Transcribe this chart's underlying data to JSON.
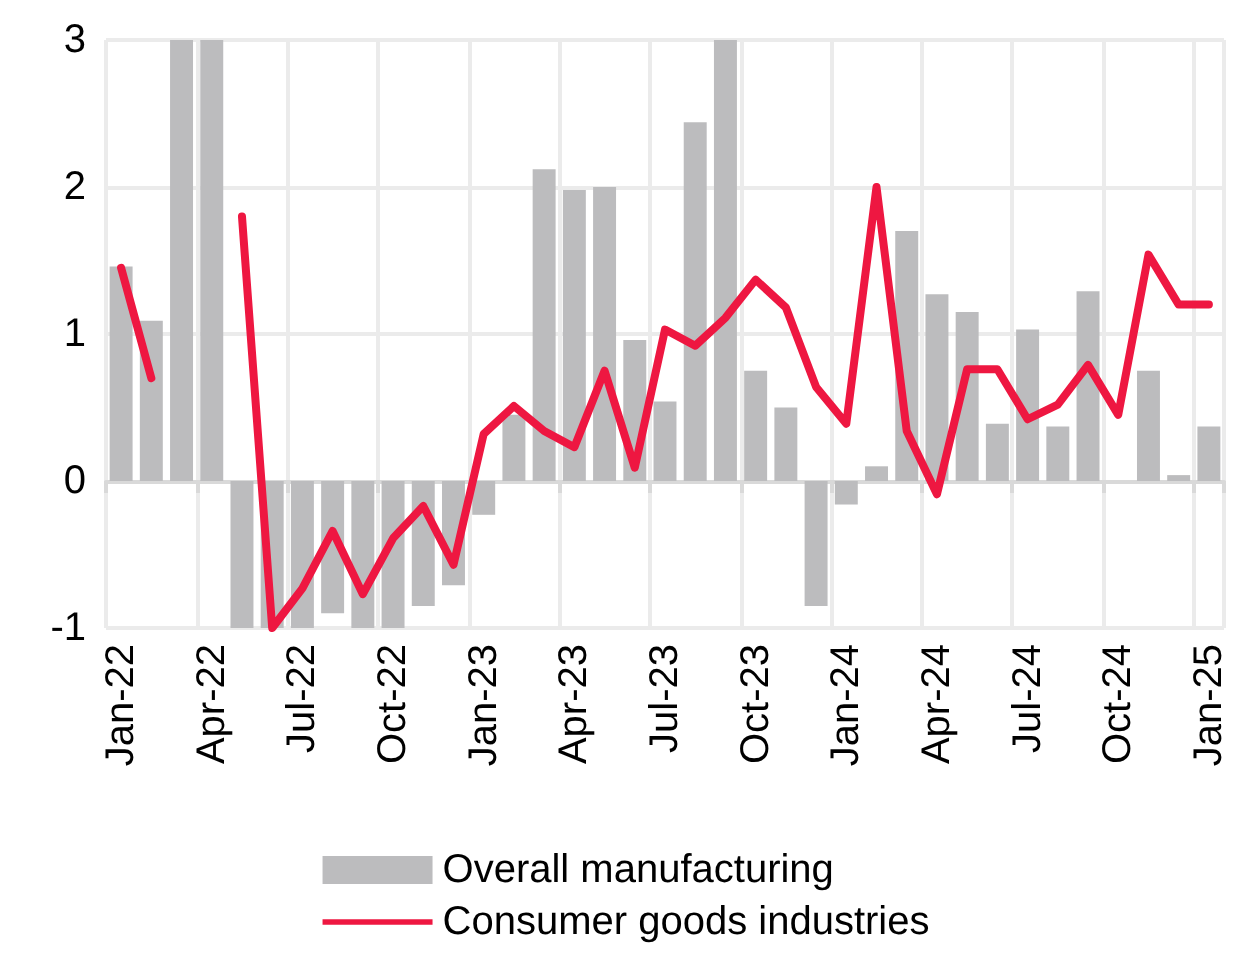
{
  "chart_data": {
    "type": "bar",
    "categories": [
      "Jan-22",
      null,
      null,
      "Apr-22",
      null,
      null,
      "Jul-22",
      null,
      null,
      "Oct-22",
      null,
      null,
      "Jan-23",
      null,
      null,
      "Apr-23",
      null,
      null,
      "Jul-23",
      null,
      null,
      "Oct-23",
      null,
      null,
      "Jan-24",
      null,
      null,
      "Apr-24",
      null,
      null,
      "Jul-24",
      null,
      null,
      "Oct-24",
      null,
      null,
      "Jan-25"
    ],
    "series": [
      {
        "name": "Overall manufacturing",
        "color": "#bcbcbe",
        "values": [
          1.46,
          1.09,
          3,
          3,
          -1,
          -1,
          -1,
          -0.9,
          -1,
          -1,
          -0.85,
          -0.71,
          -0.23,
          0.45,
          2.12,
          1.98,
          2.0,
          0.96,
          0.54,
          2.44,
          3,
          0.75,
          0.5,
          -0.85,
          -0.16,
          0.1,
          1.7,
          1.27,
          1.15,
          0.39,
          1.03,
          0.37,
          1.29,
          0,
          0.75,
          0.04,
          0.37
        ]
      },
      {
        "name": "Consumer goods industries",
        "type": "line",
        "color": "#ee1741",
        "values": [
          1.45,
          0.7,
          null,
          null,
          1.8,
          -1,
          -0.73,
          -0.34,
          -0.77,
          -0.39,
          -0.17,
          -0.57,
          0.32,
          0.51,
          0.34,
          0.23,
          0.75,
          0.09,
          1.03,
          0.92,
          1.11,
          1.37,
          1.18,
          0.64,
          0.39,
          2.0,
          0.34,
          -0.09,
          0.76,
          0.76,
          0.42,
          0.52,
          0.79,
          0.45,
          1.54,
          1.2,
          1.2
        ]
      }
    ],
    "ylim": [
      -1,
      3
    ],
    "yticks": [
      -1,
      0,
      1,
      2,
      3
    ],
    "grid": true,
    "legend": "bottom",
    "marker": "none",
    "line_style": "solid"
  }
}
